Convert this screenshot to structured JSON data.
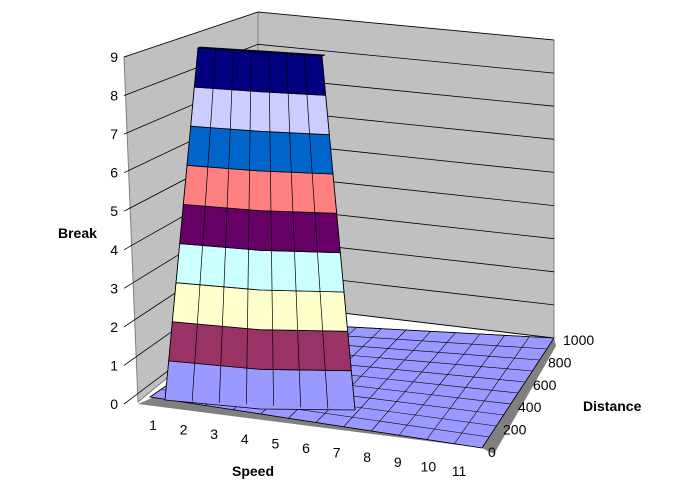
{
  "chart_data": {
    "type": "surface",
    "title": "",
    "xlabel": "Speed",
    "ylabel": "Distance",
    "zlabel": "Break",
    "x_ticks": [
      "1",
      "2",
      "3",
      "4",
      "5",
      "6",
      "7",
      "8",
      "9",
      "10",
      "11"
    ],
    "y_ticks": [
      "0",
      "200",
      "400",
      "600",
      "800",
      "1000"
    ],
    "z_ticks": [
      "0",
      "1",
      "2",
      "3",
      "4",
      "5",
      "6",
      "7",
      "8",
      "9"
    ],
    "zlim": [
      0,
      9
    ],
    "grid": true,
    "legend": "none",
    "color_bands": [
      {
        "range": [
          0,
          1
        ],
        "color": "#9999ff"
      },
      {
        "range": [
          1,
          2
        ],
        "color": "#993366"
      },
      {
        "range": [
          2,
          3
        ],
        "color": "#ffffcc"
      },
      {
        "range": [
          3,
          4
        ],
        "color": "#ccffff"
      },
      {
        "range": [
          4,
          5
        ],
        "color": "#660066"
      },
      {
        "range": [
          5,
          6
        ],
        "color": "#ff8080"
      },
      {
        "range": [
          6,
          7
        ],
        "color": "#0066cc"
      },
      {
        "range": [
          7,
          8
        ],
        "color": "#ccccff"
      },
      {
        "range": [
          8,
          9
        ],
        "color": "#000080"
      }
    ],
    "surface": {
      "description_x_range_at_max": [
        2,
        6
      ],
      "peak_value": 9,
      "base_value": 0
    },
    "colors": {
      "wall": "#c0c0c0",
      "floor": "#9999ff",
      "gridline": "#000000"
    }
  }
}
